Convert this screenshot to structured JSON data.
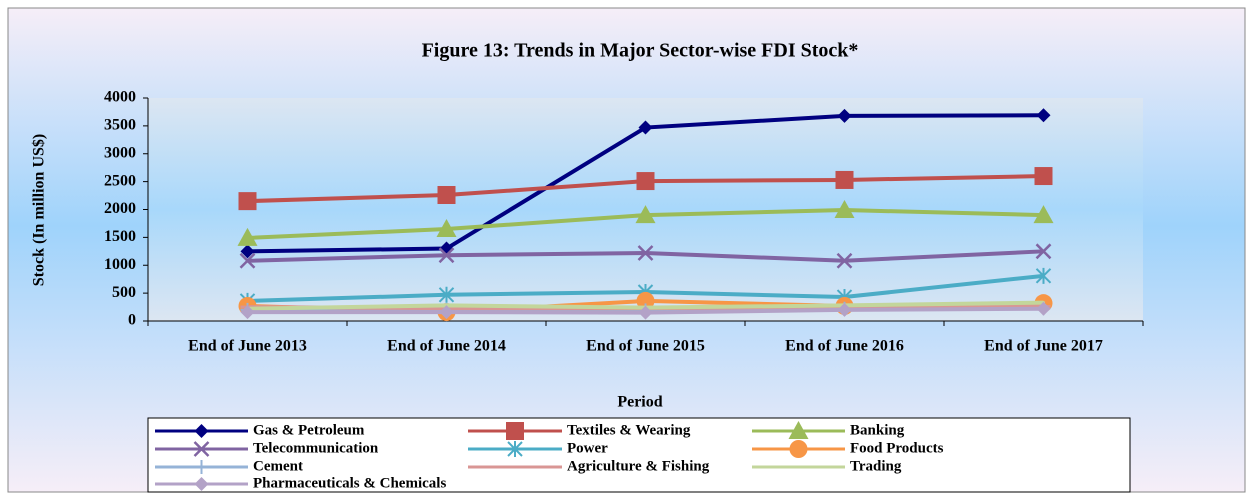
{
  "chart_data": {
    "type": "line",
    "title": "Figure 13: Trends in  Major Sector-wise FDI Stock*",
    "x_label": "Period",
    "y_label": "Stock (In million US$)",
    "categories": [
      "End of June 2013",
      "End of June 2014",
      "End of June 2015",
      "End of June 2016",
      "End of June 2017"
    ],
    "ylim": [
      0,
      4000
    ],
    "yticks": [
      0,
      500,
      1000,
      1500,
      2000,
      2500,
      3000,
      3500,
      4000
    ],
    "legend": "bottom",
    "series": [
      {
        "name": "Gas & Petroleum",
        "color": "#000080",
        "marker": "diamond",
        "values": [
          1250,
          1300,
          3470,
          3680,
          3690
        ]
      },
      {
        "name": "Textiles & Wearing",
        "color": "#c0504d",
        "marker": "square",
        "values": [
          2150,
          2260,
          2510,
          2530,
          2600
        ]
      },
      {
        "name": "Banking",
        "color": "#9bbb59",
        "marker": "triangle",
        "values": [
          1490,
          1650,
          1900,
          1990,
          1900
        ]
      },
      {
        "name": "Telecommunication",
        "color": "#8064a2",
        "marker": "x",
        "values": [
          1080,
          1180,
          1220,
          1080,
          1250
        ]
      },
      {
        "name": "Power",
        "color": "#4bacc6",
        "marker": "star",
        "values": [
          360,
          470,
          520,
          430,
          810
        ]
      },
      {
        "name": "Food Products",
        "color": "#f79646",
        "marker": "circle",
        "values": [
          270,
          160,
          360,
          270,
          320
        ]
      },
      {
        "name": "Cement",
        "color": "#95b3d7",
        "marker": "plus",
        "values": [
          200,
          200,
          190,
          220,
          230
        ]
      },
      {
        "name": "Agriculture & Fishing",
        "color": "#d99694",
        "marker": "dash",
        "values": [
          250,
          230,
          230,
          250,
          260
        ]
      },
      {
        "name": "Trading",
        "color": "#c3d69b",
        "marker": "none",
        "values": [
          220,
          280,
          240,
          280,
          330
        ]
      },
      {
        "name": "Pharmaceuticals & Chemicals",
        "color": "#b3a2c7",
        "marker": "diamond",
        "values": [
          160,
          160,
          150,
          200,
          220
        ]
      }
    ]
  }
}
